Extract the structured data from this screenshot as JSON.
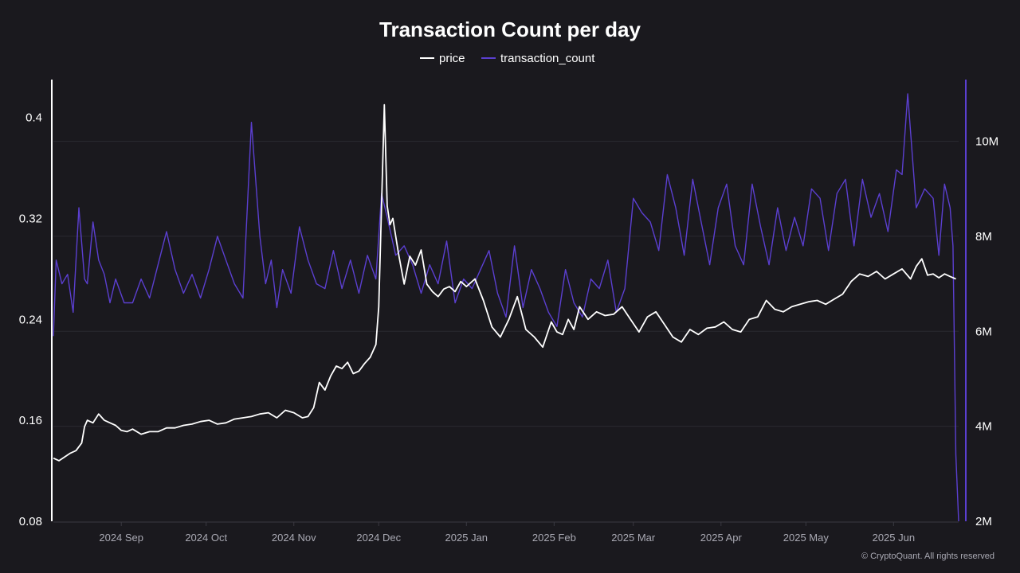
{
  "chart_data": {
    "type": "line",
    "title": "Transaction Count per day",
    "xlabel": "",
    "ylabel_left": "",
    "ylabel_right": "",
    "grid": true,
    "legend_position": "top-center",
    "x_range": [
      "2024-08-08",
      "2025-06-24"
    ],
    "y_left": {
      "range": [
        0.08,
        0.43
      ],
      "ticks": [
        0.08,
        0.16,
        0.24,
        0.32,
        0.4
      ],
      "tick_labels": [
        "0.08",
        "0.16",
        "0.24",
        "0.32",
        "0.4"
      ]
    },
    "y_right": {
      "range": [
        2000000,
        11300000
      ],
      "ticks": [
        2000000,
        4000000,
        6000000,
        8000000,
        10000000
      ],
      "tick_labels": [
        "2M",
        "4M",
        "6M",
        "8M",
        "10M"
      ]
    },
    "x_ticks": [
      {
        "date": "2024-09-01",
        "label": "2024 Sep"
      },
      {
        "date": "2024-10-01",
        "label": "2024 Oct"
      },
      {
        "date": "2024-11-01",
        "label": "2024 Nov"
      },
      {
        "date": "2024-12-01",
        "label": "2024 Dec"
      },
      {
        "date": "2025-01-01",
        "label": "2025 Jan"
      },
      {
        "date": "2025-02-01",
        "label": "2025 Feb"
      },
      {
        "date": "2025-03-01",
        "label": "2025 Mar"
      },
      {
        "date": "2025-04-01",
        "label": "2025 Apr"
      },
      {
        "date": "2025-05-01",
        "label": "2025 May"
      },
      {
        "date": "2025-06-01",
        "label": "2025 Jun"
      }
    ],
    "series": [
      {
        "name": "price",
        "axis": "left",
        "color": "#ffffff",
        "x": [
          "2024-08-08",
          "2024-08-10",
          "2024-08-12",
          "2024-08-14",
          "2024-08-16",
          "2024-08-18",
          "2024-08-19",
          "2024-08-20",
          "2024-08-22",
          "2024-08-24",
          "2024-08-26",
          "2024-08-28",
          "2024-08-30",
          "2024-09-01",
          "2024-09-03",
          "2024-09-05",
          "2024-09-08",
          "2024-09-11",
          "2024-09-14",
          "2024-09-17",
          "2024-09-20",
          "2024-09-23",
          "2024-09-26",
          "2024-09-29",
          "2024-10-02",
          "2024-10-05",
          "2024-10-08",
          "2024-10-11",
          "2024-10-14",
          "2024-10-17",
          "2024-10-20",
          "2024-10-23",
          "2024-10-26",
          "2024-10-29",
          "2024-11-01",
          "2024-11-04",
          "2024-11-06",
          "2024-11-08",
          "2024-11-10",
          "2024-11-12",
          "2024-11-14",
          "2024-11-16",
          "2024-11-18",
          "2024-11-20",
          "2024-11-22",
          "2024-11-24",
          "2024-11-26",
          "2024-11-28",
          "2024-11-30",
          "2024-12-01",
          "2024-12-02",
          "2024-12-03",
          "2024-12-04",
          "2024-12-05",
          "2024-12-06",
          "2024-12-08",
          "2024-12-10",
          "2024-12-12",
          "2024-12-14",
          "2024-12-16",
          "2024-12-18",
          "2024-12-20",
          "2024-12-22",
          "2024-12-24",
          "2024-12-26",
          "2024-12-28",
          "2024-12-30",
          "2025-01-01",
          "2025-01-04",
          "2025-01-07",
          "2025-01-10",
          "2025-01-13",
          "2025-01-16",
          "2025-01-19",
          "2025-01-22",
          "2025-01-25",
          "2025-01-28",
          "2025-01-31",
          "2025-02-02",
          "2025-02-04",
          "2025-02-06",
          "2025-02-08",
          "2025-02-10",
          "2025-02-13",
          "2025-02-16",
          "2025-02-19",
          "2025-02-22",
          "2025-02-25",
          "2025-02-28",
          "2025-03-03",
          "2025-03-06",
          "2025-03-09",
          "2025-03-12",
          "2025-03-15",
          "2025-03-18",
          "2025-03-21",
          "2025-03-24",
          "2025-03-27",
          "2025-03-30",
          "2025-04-02",
          "2025-04-05",
          "2025-04-08",
          "2025-04-11",
          "2025-04-14",
          "2025-04-17",
          "2025-04-20",
          "2025-04-23",
          "2025-04-26",
          "2025-04-29",
          "2025-05-02",
          "2025-05-05",
          "2025-05-08",
          "2025-05-11",
          "2025-05-14",
          "2025-05-17",
          "2025-05-20",
          "2025-05-23",
          "2025-05-26",
          "2025-05-29",
          "2025-06-01",
          "2025-06-04",
          "2025-06-07",
          "2025-06-09",
          "2025-06-11",
          "2025-06-13",
          "2025-06-15",
          "2025-06-17",
          "2025-06-19",
          "2025-06-21",
          "2025-06-23"
        ],
        "values": [
          0.13,
          0.128,
          0.131,
          0.134,
          0.136,
          0.142,
          0.155,
          0.16,
          0.158,
          0.165,
          0.16,
          0.158,
          0.156,
          0.152,
          0.151,
          0.153,
          0.149,
          0.151,
          0.151,
          0.154,
          0.154,
          0.156,
          0.157,
          0.159,
          0.16,
          0.157,
          0.158,
          0.161,
          0.162,
          0.163,
          0.165,
          0.166,
          0.162,
          0.168,
          0.166,
          0.162,
          0.163,
          0.17,
          0.19,
          0.184,
          0.195,
          0.203,
          0.201,
          0.206,
          0.197,
          0.199,
          0.205,
          0.21,
          0.22,
          0.25,
          0.33,
          0.41,
          0.33,
          0.315,
          0.32,
          0.292,
          0.268,
          0.29,
          0.283,
          0.295,
          0.268,
          0.262,
          0.258,
          0.264,
          0.266,
          0.262,
          0.27,
          0.266,
          0.272,
          0.255,
          0.234,
          0.226,
          0.24,
          0.258,
          0.232,
          0.226,
          0.218,
          0.238,
          0.23,
          0.228,
          0.24,
          0.232,
          0.25,
          0.24,
          0.246,
          0.243,
          0.244,
          0.25,
          0.24,
          0.23,
          0.242,
          0.246,
          0.236,
          0.226,
          0.222,
          0.232,
          0.228,
          0.233,
          0.234,
          0.238,
          0.232,
          0.23,
          0.24,
          0.242,
          0.255,
          0.248,
          0.246,
          0.25,
          0.252,
          0.254,
          0.255,
          0.252,
          0.256,
          0.26,
          0.27,
          0.276,
          0.274,
          0.278,
          0.272,
          0.276,
          0.28,
          0.272,
          0.282,
          0.288,
          0.275,
          0.276,
          0.273,
          0.276,
          0.274,
          0.272
        ],
        "notes": ""
      },
      {
        "name": "transaction_count",
        "axis": "right",
        "color": "#5b3fd0",
        "x": [
          "2024-08-08",
          "2024-08-09",
          "2024-08-11",
          "2024-08-13",
          "2024-08-15",
          "2024-08-17",
          "2024-08-19",
          "2024-08-20",
          "2024-08-22",
          "2024-08-24",
          "2024-08-26",
          "2024-08-28",
          "2024-08-30",
          "2024-09-02",
          "2024-09-05",
          "2024-09-08",
          "2024-09-11",
          "2024-09-14",
          "2024-09-17",
          "2024-09-20",
          "2024-09-23",
          "2024-09-26",
          "2024-09-29",
          "2024-10-02",
          "2024-10-05",
          "2024-10-08",
          "2024-10-11",
          "2024-10-14",
          "2024-10-17",
          "2024-10-20",
          "2024-10-22",
          "2024-10-24",
          "2024-10-26",
          "2024-10-28",
          "2024-10-31",
          "2024-11-03",
          "2024-11-06",
          "2024-11-09",
          "2024-11-12",
          "2024-11-15",
          "2024-11-18",
          "2024-11-21",
          "2024-11-24",
          "2024-11-27",
          "2024-11-30",
          "2024-12-02",
          "2024-12-04",
          "2024-12-07",
          "2024-12-10",
          "2024-12-13",
          "2024-12-16",
          "2024-12-19",
          "2024-12-22",
          "2024-12-25",
          "2024-12-28",
          "2024-12-31",
          "2025-01-03",
          "2025-01-06",
          "2025-01-09",
          "2025-01-12",
          "2025-01-15",
          "2025-01-18",
          "2025-01-21",
          "2025-01-24",
          "2025-01-27",
          "2025-01-30",
          "2025-02-02",
          "2025-02-05",
          "2025-02-08",
          "2025-02-11",
          "2025-02-14",
          "2025-02-17",
          "2025-02-20",
          "2025-02-23",
          "2025-02-26",
          "2025-03-01",
          "2025-03-04",
          "2025-03-07",
          "2025-03-10",
          "2025-03-13",
          "2025-03-16",
          "2025-03-19",
          "2025-03-22",
          "2025-03-25",
          "2025-03-28",
          "2025-03-31",
          "2025-04-03",
          "2025-04-06",
          "2025-04-09",
          "2025-04-12",
          "2025-04-15",
          "2025-04-18",
          "2025-04-21",
          "2025-04-24",
          "2025-04-27",
          "2025-04-30",
          "2025-05-03",
          "2025-05-06",
          "2025-05-09",
          "2025-05-12",
          "2025-05-15",
          "2025-05-18",
          "2025-05-21",
          "2025-05-24",
          "2025-05-27",
          "2025-05-30",
          "2025-06-02",
          "2025-06-04",
          "2025-06-06",
          "2025-06-09",
          "2025-06-12",
          "2025-06-15",
          "2025-06-17",
          "2025-06-19",
          "2025-06-21",
          "2025-06-22",
          "2025-06-23",
          "2025-06-24"
        ],
        "values": [
          5900000,
          7500000,
          7000000,
          7200000,
          6400000,
          8600000,
          7100000,
          7000000,
          8300000,
          7500000,
          7200000,
          6600000,
          7100000,
          6600000,
          6600000,
          7100000,
          6700000,
          7400000,
          8100000,
          7300000,
          6800000,
          7200000,
          6700000,
          7300000,
          8000000,
          7500000,
          7000000,
          6700000,
          10400000,
          8000000,
          7000000,
          7500000,
          6500000,
          7300000,
          6800000,
          8200000,
          7500000,
          7000000,
          6900000,
          7700000,
          6900000,
          7500000,
          6800000,
          7600000,
          7100000,
          8900000,
          8400000,
          7600000,
          7800000,
          7400000,
          6800000,
          7400000,
          7000000,
          7900000,
          6600000,
          7100000,
          6900000,
          7300000,
          7700000,
          6800000,
          6300000,
          7800000,
          6500000,
          7300000,
          6900000,
          6400000,
          6100000,
          7300000,
          6600000,
          6300000,
          7100000,
          6900000,
          7500000,
          6400000,
          6900000,
          8800000,
          8500000,
          8300000,
          7700000,
          9300000,
          8600000,
          7600000,
          9200000,
          8300000,
          7400000,
          8600000,
          9100000,
          7800000,
          7400000,
          9100000,
          8200000,
          7400000,
          8600000,
          7700000,
          8400000,
          7800000,
          9000000,
          8800000,
          7700000,
          8900000,
          9200000,
          7800000,
          9200000,
          8400000,
          8900000,
          8100000,
          9400000,
          9300000,
          11000000,
          8600000,
          9000000,
          8800000,
          7600000,
          9100000,
          8600000,
          7800000,
          3400000,
          2000000
        ],
        "notes": ""
      }
    ],
    "credit": "© CryptoQuant. All rights reserved",
    "watermark": "CryptoQuant"
  },
  "colors": {
    "background": "#1a191e",
    "price": "#ffffff",
    "transaction_count": "#5b3fd0",
    "grid": "#2b2a31",
    "axis_left": "#ffffff",
    "axis_right": "#5b3fd0"
  }
}
